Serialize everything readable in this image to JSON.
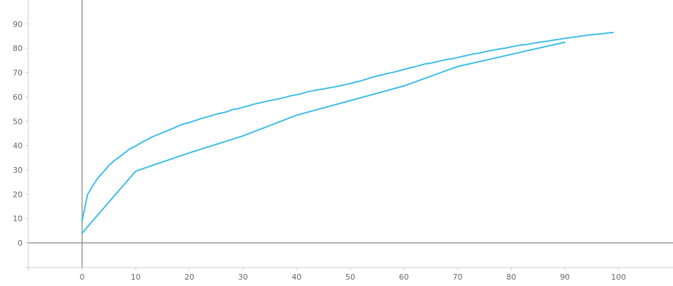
{
  "chart_data": {
    "type": "line",
    "title": "",
    "xlabel": "",
    "ylabel": "",
    "xlim": [
      -10,
      101
    ],
    "ylim": [
      -10,
      98
    ],
    "x_ticks": [
      0,
      10,
      20,
      30,
      40,
      50,
      60,
      70,
      80,
      90,
      100
    ],
    "y_ticks": [
      0,
      10,
      20,
      30,
      40,
      50,
      60,
      70,
      80,
      90
    ],
    "grid": false,
    "legend": "none",
    "line_color": "#3dbde8",
    "axis_color": "#999999",
    "series": [
      {
        "x": [
          0,
          1,
          2,
          3,
          4,
          5,
          6,
          7,
          8,
          9,
          10,
          11,
          12,
          13,
          14,
          15,
          16,
          17,
          18,
          19,
          20,
          21,
          22,
          23,
          24,
          25,
          26,
          27,
          28,
          29,
          30,
          31,
          32,
          33,
          34,
          35,
          36,
          37,
          38,
          39,
          40,
          41,
          42,
          43,
          44,
          45,
          46,
          47,
          48,
          49,
          50,
          51,
          52,
          53,
          54,
          55,
          56,
          57,
          58,
          59,
          60,
          61,
          62,
          63,
          64,
          65,
          66,
          67,
          68,
          69,
          70,
          71,
          72,
          73,
          74,
          75,
          76,
          77,
          78,
          79,
          80,
          81,
          82,
          83,
          84,
          85,
          86,
          87,
          88,
          89,
          90,
          91,
          92,
          93,
          94,
          95,
          96,
          97,
          98,
          99
        ],
        "y": [
          9,
          19.8,
          23.5,
          26.8,
          29.2,
          31.8,
          33.8,
          35.4,
          37.1,
          38.8,
          39.8,
          41.2,
          42.3,
          43.5,
          44.4,
          45.3,
          46.2,
          47.1,
          48.1,
          48.9,
          49.5,
          50.2,
          51.0,
          51.6,
          52.2,
          52.9,
          53.4,
          53.9,
          54.8,
          55.1,
          55.8,
          56.3,
          57.0,
          57.5,
          58.0,
          58.5,
          58.9,
          59.4,
          59.9,
          60.5,
          60.9,
          61.4,
          62.1,
          62.5,
          62.9,
          63.3,
          63.7,
          64.1,
          64.5,
          65.0,
          65.5,
          66.1,
          66.6,
          67.3,
          68.0,
          68.6,
          69.1,
          69.7,
          70.1,
          70.7,
          71.3,
          71.9,
          72.4,
          73.0,
          73.6,
          73.9,
          74.4,
          74.9,
          75.4,
          75.7,
          76.2,
          76.7,
          77.2,
          77.7,
          78.0,
          78.5,
          79.0,
          79.4,
          79.8,
          80.1,
          80.6,
          81.0,
          81.4,
          81.6,
          82.0,
          82.4,
          82.7,
          83.0,
          83.4,
          83.7,
          84.1,
          84.4,
          84.7,
          85.0,
          85.3,
          85.6,
          85.8,
          86.0,
          86.3,
          86.5
        ]
      },
      {
        "x": [
          0,
          10,
          20,
          30,
          40,
          50,
          60,
          70,
          80,
          90
        ],
        "y": [
          4,
          29.5,
          37,
          44,
          52.5,
          58.5,
          64.5,
          72.5,
          77.5,
          82.5
        ]
      }
    ]
  }
}
